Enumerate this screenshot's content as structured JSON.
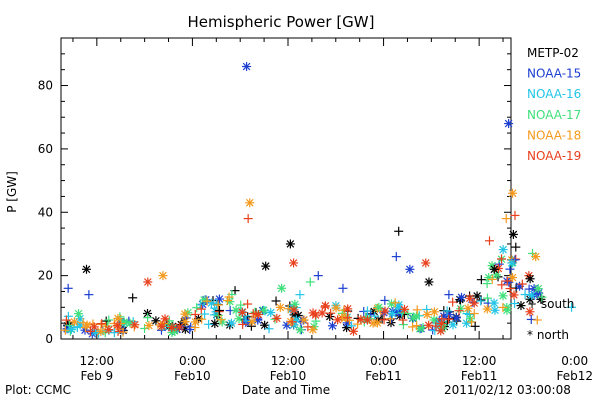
{
  "chart_data": {
    "type": "scatter",
    "title": "Hemispheric Power [GW]",
    "ylabel": "P [GW]",
    "xlabel": "Date and Time",
    "ylim": [
      0,
      95
    ],
    "xlim_hours": [
      -16.5,
      40
    ],
    "yticks": [
      0,
      20,
      40,
      60,
      80
    ],
    "xticks": [
      {
        "time": "12:00",
        "date": "Feb 9"
      },
      {
        "time": "0:00",
        "date": "Feb10"
      },
      {
        "time": "12:00",
        "date": "Feb10"
      },
      {
        "time": "0:00",
        "date": "Feb11"
      },
      {
        "time": "12:00",
        "date": "Feb11"
      },
      {
        "time": "0:00",
        "date": "Feb12"
      }
    ],
    "xtick_hours": [
      -12,
      0,
      12,
      24,
      36,
      48
    ],
    "legend_placement": "right",
    "marker_legend": [
      {
        "marker": "+",
        "label": "south"
      },
      {
        "marker": "*",
        "label": "north"
      }
    ],
    "series": [
      {
        "name": "METP-02",
        "color": "#000000",
        "points": [
          {
            "x": -13.3,
            "y": 22,
            "m": "*"
          },
          {
            "x": -7.5,
            "y": 13,
            "m": "+"
          },
          {
            "x": 3.4,
            "y": 9,
            "m": "+"
          },
          {
            "x": 9.2,
            "y": 23,
            "m": "*"
          },
          {
            "x": 10.5,
            "y": 12,
            "m": "+"
          },
          {
            "x": 12.3,
            "y": 30,
            "m": "*"
          },
          {
            "x": 25.9,
            "y": 34,
            "m": "+"
          },
          {
            "x": 29.7,
            "y": 18,
            "m": "*"
          },
          {
            "x": 35.5,
            "y": 4,
            "m": "+"
          },
          {
            "x": 37.9,
            "y": 22,
            "m": "*"
          },
          {
            "x": 40.3,
            "y": 33,
            "m": "*"
          },
          {
            "x": 40.6,
            "y": 29,
            "m": "+"
          },
          {
            "x": 42.4,
            "y": 19,
            "m": "*"
          }
        ]
      },
      {
        "name": "NOAA-15",
        "color": "#1c3fd0",
        "points": [
          {
            "x": -15.6,
            "y": 16,
            "m": "+"
          },
          {
            "x": -13.0,
            "y": 14,
            "m": "+"
          },
          {
            "x": 6.8,
            "y": 86,
            "m": "*"
          },
          {
            "x": 15.8,
            "y": 20,
            "m": "+"
          },
          {
            "x": 18.9,
            "y": 16,
            "m": "+"
          },
          {
            "x": 25.6,
            "y": 26,
            "m": "+"
          },
          {
            "x": 27.3,
            "y": 22,
            "m": "*"
          },
          {
            "x": 32.2,
            "y": 14,
            "m": "+"
          },
          {
            "x": 39.7,
            "y": 68,
            "m": "*"
          },
          {
            "x": 40.5,
            "y": 25,
            "m": "+"
          }
        ]
      },
      {
        "name": "NOAA-16",
        "color": "#22c5e6",
        "points": [
          {
            "x": -15.2,
            "y": 3,
            "m": "*"
          },
          {
            "x": -9.8,
            "y": 2,
            "m": "+"
          },
          {
            "x": 4.9,
            "y": 5,
            "m": "*"
          },
          {
            "x": 13.5,
            "y": 14,
            "m": "+"
          },
          {
            "x": 25.1,
            "y": 8,
            "m": "*"
          },
          {
            "x": 36.2,
            "y": 12,
            "m": "+"
          },
          {
            "x": 40.1,
            "y": 24,
            "m": "*"
          },
          {
            "x": 47.6,
            "y": 10,
            "m": "+"
          }
        ]
      },
      {
        "name": "NOAA-17",
        "color": "#3fe07a",
        "points": [
          {
            "x": -14.3,
            "y": 8,
            "m": "*"
          },
          {
            "x": -10.5,
            "y": 6,
            "m": "+"
          },
          {
            "x": 11.2,
            "y": 16,
            "m": "*"
          },
          {
            "x": 14.8,
            "y": 18,
            "m": "+"
          },
          {
            "x": 23.4,
            "y": 10,
            "m": "*"
          },
          {
            "x": 42.7,
            "y": 27,
            "m": "+"
          }
        ]
      },
      {
        "name": "NOAA-18",
        "color": "#f59a1e",
        "points": [
          {
            "x": -3.7,
            "y": 20,
            "m": "*"
          },
          {
            "x": 7.2,
            "y": 43,
            "m": "*"
          },
          {
            "x": 39.4,
            "y": 38,
            "m": "+"
          },
          {
            "x": 40.2,
            "y": 46,
            "m": "*"
          },
          {
            "x": 43.3,
            "y": 6,
            "m": "+"
          },
          {
            "x": 43.1,
            "y": 26,
            "m": "*"
          }
        ]
      },
      {
        "name": "NOAA-19",
        "color": "#e8401c",
        "points": [
          {
            "x": -5.6,
            "y": 18,
            "m": "*"
          },
          {
            "x": 7.0,
            "y": 38,
            "m": "+"
          },
          {
            "x": 12.7,
            "y": 24,
            "m": "*"
          },
          {
            "x": 29.3,
            "y": 24,
            "m": "*"
          },
          {
            "x": 37.3,
            "y": 31,
            "m": "+"
          },
          {
            "x": 40.5,
            "y": 39,
            "m": "+"
          }
        ]
      }
    ],
    "density": {
      "range_hours": [
        -16,
        44
      ],
      "points_per_series": 60,
      "baseline_gw": [
        6,
        4,
        3,
        5,
        4,
        6,
        4,
        5,
        8,
        9,
        10,
        7,
        6,
        9,
        5,
        7,
        8,
        5,
        7,
        9,
        6,
        7,
        5,
        9,
        12,
        16,
        20,
        14,
        10
      ]
    }
  },
  "footer": {
    "plot_label": "Plot: CCMC",
    "timestamp": "2011/02/12 03:00:08"
  }
}
